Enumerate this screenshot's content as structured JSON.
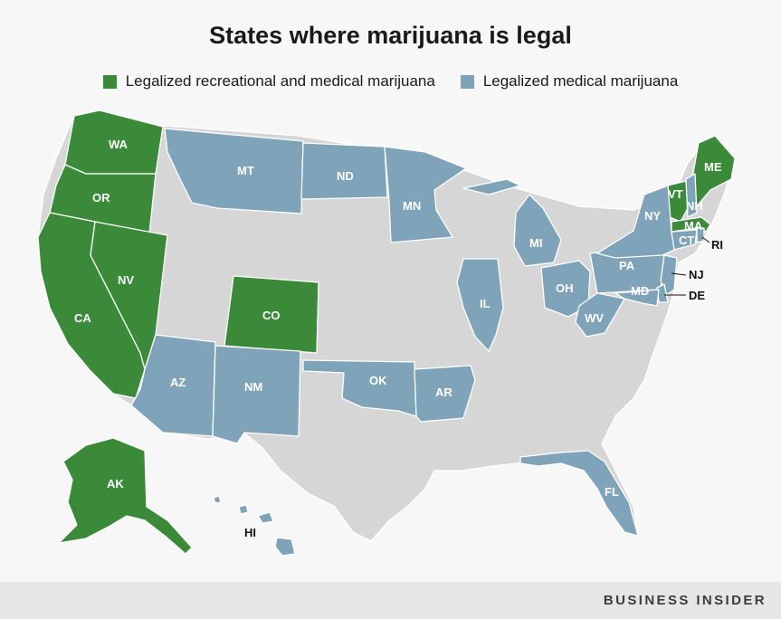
{
  "title": "States where marijuana is legal",
  "legend": [
    {
      "label": "Legalized recreational and medical marijuana",
      "color": "#3a8a3a"
    },
    {
      "label": "Legalized medical marijuana",
      "color": "#7fa3b8"
    }
  ],
  "colors": {
    "recreational": "#3a8a3a",
    "medical": "#7fa3b8",
    "none": "#d6d6d6",
    "border": "#ffffff"
  },
  "states": {
    "recreational_and_medical": [
      "WA",
      "OR",
      "CA",
      "NV",
      "CO",
      "AK",
      "VT",
      "ME",
      "MA"
    ],
    "medical_only": [
      "MT",
      "ND",
      "MN",
      "MI",
      "IL",
      "OH",
      "PA",
      "NY",
      "NH",
      "CT",
      "RI",
      "NJ",
      "DE",
      "MD",
      "WV",
      "AZ",
      "NM",
      "OK",
      "AR",
      "FL",
      "HI"
    ]
  },
  "labels": {
    "WA": "WA",
    "OR": "OR",
    "CA": "CA",
    "NV": "NV",
    "CO": "CO",
    "AK": "AK",
    "VT": "VT",
    "ME": "ME",
    "MA": "MA",
    "MT": "MT",
    "ND": "ND",
    "MN": "MN",
    "MI": "MI",
    "IL": "IL",
    "OH": "OH",
    "PA": "PA",
    "NY": "NY",
    "NH": "NH",
    "CT": "CT",
    "RI": "RI",
    "NJ": "NJ",
    "DE": "DE",
    "MD": "MD",
    "WV": "WV",
    "AZ": "AZ",
    "NM": "NM",
    "OK": "OK",
    "AR": "AR",
    "FL": "FL",
    "HI": "HI"
  },
  "brand": "BUSINESS INSIDER"
}
